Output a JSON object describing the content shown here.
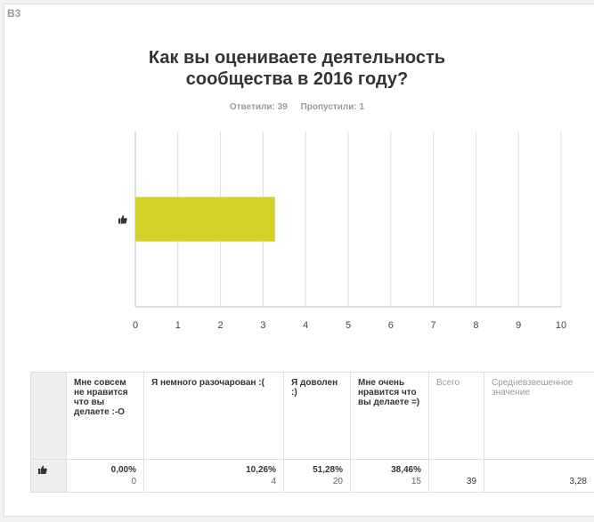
{
  "question": {
    "number": "В3",
    "title_line1": "Как вы оцениваете деятельность",
    "title_line2": "сообщества в 2016 году?",
    "answered": "Ответили: 39",
    "skipped": "Пропустили: 1"
  },
  "colors": {
    "bar": "#d4d22a",
    "grid": "#dcdcdc",
    "plot_bg": "#ffffff"
  },
  "chart_data": {
    "type": "bar",
    "orientation": "horizontal",
    "categories": [
      "thumbs-up-icon"
    ],
    "values": [
      3.28
    ],
    "xlim": [
      0,
      10
    ],
    "xticks": [
      "0",
      "1",
      "2",
      "3",
      "4",
      "5",
      "6",
      "7",
      "8",
      "9",
      "10"
    ],
    "grid": true
  },
  "table": {
    "columns": [
      "Мне совсем не нравится что вы делаете :-О",
      "Я немного разочарован :(",
      "Я доволен :)",
      "Мне очень нравится что вы делаете =)",
      "Всего",
      "Средневзвешенное значение"
    ],
    "rows": [
      {
        "icon": "thumbs-up-icon",
        "cells": [
          {
            "pct": "0,00%",
            "count": "0"
          },
          {
            "pct": "10,26%",
            "count": "4"
          },
          {
            "pct": "51,28%",
            "count": "20"
          },
          {
            "pct": "38,46%",
            "count": "15"
          }
        ],
        "total": "39",
        "weighted": "3,28"
      }
    ]
  }
}
